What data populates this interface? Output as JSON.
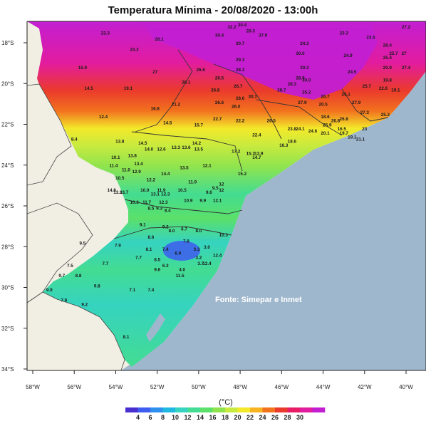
{
  "title": "Temperatura Mínima - 20/08/2020 - 13:00h",
  "source_note": "Fonte: Simepar e Inmet",
  "colorbar": {
    "unit": "(°C)",
    "ticks": [
      "4",
      "6",
      "8",
      "10",
      "12",
      "14",
      "16",
      "18",
      "20",
      "22",
      "24",
      "26",
      "28",
      "30"
    ],
    "colors": [
      "#4a2fd0",
      "#3e5cf0",
      "#2f8fee",
      "#20b8e0",
      "#36d3c0",
      "#43dc92",
      "#5be06a",
      "#8fe44e",
      "#c8ea3e",
      "#f3e92a",
      "#f8b321",
      "#f2731e",
      "#ea3a2c",
      "#e81d66",
      "#e21c9f",
      "#c21fd2"
    ]
  },
  "axes": {
    "lon_labels": [
      "58°W",
      "56°W",
      "54°W",
      "52°W",
      "50°W",
      "48°W",
      "46°W",
      "44°W",
      "42°W",
      "40°W"
    ],
    "lat_labels": [
      "18°S",
      "20°S",
      "22°S",
      "24°S",
      "26°S",
      "28°S",
      "30°S",
      "32°S",
      "34°S"
    ]
  },
  "station_values": [
    {
      "t": "32.2",
      "lon": -48.4,
      "lat": -17.3
    },
    {
      "t": "30.4",
      "lon": -47.9,
      "lat": -17.2
    },
    {
      "t": "30.4",
      "lon": -49.0,
      "lat": -17.7
    },
    {
      "t": "20.3",
      "lon": -47.5,
      "lat": -17.5
    },
    {
      "t": "30.7",
      "lon": -48.0,
      "lat": -18.1
    },
    {
      "t": "37.9",
      "lon": -46.9,
      "lat": -17.7
    },
    {
      "t": "22.3",
      "lon": -54.5,
      "lat": -17.6
    },
    {
      "t": "26.1",
      "lon": -51.9,
      "lat": -17.9
    },
    {
      "t": "23.2",
      "lon": -53.1,
      "lat": -18.4
    },
    {
      "t": "23.3",
      "lon": -43.0,
      "lat": -17.6
    },
    {
      "t": "23.5",
      "lon": -41.7,
      "lat": -17.8
    },
    {
      "t": "27.2",
      "lon": -40.0,
      "lat": -17.3
    },
    {
      "t": "24.3",
      "lon": -44.9,
      "lat": -18.1
    },
    {
      "t": "28.4",
      "lon": -40.9,
      "lat": -18.2
    },
    {
      "t": "25.7",
      "lon": -40.6,
      "lat": -18.6
    },
    {
      "t": "27",
      "lon": -40.1,
      "lat": -18.6
    },
    {
      "t": "30.0",
      "lon": -45.1,
      "lat": -18.6
    },
    {
      "t": "24.9",
      "lon": -42.8,
      "lat": -18.7
    },
    {
      "t": "25.4",
      "lon": -40.9,
      "lat": -18.8
    },
    {
      "t": "29.3",
      "lon": -48.0,
      "lat": -18.9
    },
    {
      "t": "20.9",
      "lon": -40.9,
      "lat": -19.3
    },
    {
      "t": "27.4",
      "lon": -40.0,
      "lat": -19.3
    },
    {
      "t": "15.9",
      "lon": -55.6,
      "lat": -19.3
    },
    {
      "t": "26.6",
      "lon": -49.9,
      "lat": -19.4
    },
    {
      "t": "28.3",
      "lon": -48.0,
      "lat": -19.4
    },
    {
      "t": "30.3",
      "lon": -44.9,
      "lat": -19.3
    },
    {
      "t": "24.5",
      "lon": -42.6,
      "lat": -19.5
    },
    {
      "t": "27",
      "lon": -52.1,
      "lat": -19.5
    },
    {
      "t": "26.5",
      "lon": -49.0,
      "lat": -19.8
    },
    {
      "t": "28.9",
      "lon": -45.1,
      "lat": -19.8
    },
    {
      "t": "30.0",
      "lon": -44.8,
      "lat": -19.9
    },
    {
      "t": "26.1",
      "lon": -50.6,
      "lat": -20.0
    },
    {
      "t": "28.3",
      "lon": -45.5,
      "lat": -20.1
    },
    {
      "t": "26.7",
      "lon": -48.1,
      "lat": -20.2
    },
    {
      "t": "25.7",
      "lon": -41.9,
      "lat": -20.2
    },
    {
      "t": "19.8",
      "lon": -40.9,
      "lat": -19.9
    },
    {
      "t": "19.1",
      "lon": -53.4,
      "lat": -20.3
    },
    {
      "t": "14.5",
      "lon": -55.3,
      "lat": -20.3
    },
    {
      "t": "26.8",
      "lon": -49.2,
      "lat": -20.4
    },
    {
      "t": "28.7",
      "lon": -46.0,
      "lat": -20.4
    },
    {
      "t": "25.2",
      "lon": -44.8,
      "lat": -20.5
    },
    {
      "t": "22.6",
      "lon": -41.1,
      "lat": -20.3
    },
    {
      "t": "19.1",
      "lon": -40.5,
      "lat": -20.4
    },
    {
      "t": "30.1",
      "lon": -47.4,
      "lat": -20.7
    },
    {
      "t": "28.6",
      "lon": -48.0,
      "lat": -20.8
    },
    {
      "t": "26.7",
      "lon": -43.9,
      "lat": -20.7
    },
    {
      "t": "25.1",
      "lon": -42.9,
      "lat": -20.6
    },
    {
      "t": "26.6",
      "lon": -49.0,
      "lat": -21.0
    },
    {
      "t": "27.9",
      "lon": -45.0,
      "lat": -21.0
    },
    {
      "t": "20.5",
      "lon": -44.0,
      "lat": -21.1
    },
    {
      "t": "27.9",
      "lon": -42.4,
      "lat": -21.0
    },
    {
      "t": "16.8",
      "lon": -52.1,
      "lat": -21.3
    },
    {
      "t": "21.2",
      "lon": -51.1,
      "lat": -21.1
    },
    {
      "t": "26.0",
      "lon": -48.2,
      "lat": -21.2
    },
    {
      "t": "27.3",
      "lon": -42.0,
      "lat": -21.5
    },
    {
      "t": "25.3",
      "lon": -41.0,
      "lat": -21.6
    },
    {
      "t": "12.4",
      "lon": -54.6,
      "lat": -21.7
    },
    {
      "t": "18.6",
      "lon": -43.9,
      "lat": -21.7
    },
    {
      "t": "26.8",
      "lon": -43.0,
      "lat": -21.8
    },
    {
      "t": "22.7",
      "lon": -49.1,
      "lat": -21.8
    },
    {
      "t": "22.2",
      "lon": -48.0,
      "lat": -21.9
    },
    {
      "t": "26.5",
      "lon": -46.5,
      "lat": -21.9
    },
    {
      "t": "26.8",
      "lon": -43.4,
      "lat": -21.9
    },
    {
      "t": "14.5",
      "lon": -51.5,
      "lat": -22.0
    },
    {
      "t": "15.7",
      "lon": -50.0,
      "lat": -22.1
    },
    {
      "t": "25.9",
      "lon": -43.8,
      "lat": -22.1
    },
    {
      "t": "23",
      "lon": -42.0,
      "lat": -22.3
    },
    {
      "t": "23.8",
      "lon": -45.5,
      "lat": -22.3
    },
    {
      "t": "24.1",
      "lon": -45.1,
      "lat": -22.3
    },
    {
      "t": "24.6",
      "lon": -44.5,
      "lat": -22.4
    },
    {
      "t": "16.5",
      "lon": -43.1,
      "lat": -22.3
    },
    {
      "t": "20.1",
      "lon": -43.9,
      "lat": -22.5
    },
    {
      "t": "19.7",
      "lon": -43.0,
      "lat": -22.5
    },
    {
      "t": "22.4",
      "lon": -47.2,
      "lat": -22.6
    },
    {
      "t": "19.1",
      "lon": -42.6,
      "lat": -22.7
    },
    {
      "t": "21.1",
      "lon": -42.2,
      "lat": -22.8
    },
    {
      "t": "8.4",
      "lon": -56.0,
      "lat": -22.8
    },
    {
      "t": "13.8",
      "lon": -53.8,
      "lat": -22.9
    },
    {
      "t": "14.5",
      "lon": -52.7,
      "lat": -23.0
    },
    {
      "t": "18.6",
      "lon": -45.5,
      "lat": -22.9
    },
    {
      "t": "16.3",
      "lon": -45.9,
      "lat": -23.1
    },
    {
      "t": "14.2",
      "lon": -50.1,
      "lat": -23.0
    },
    {
      "t": "14.0",
      "lon": -52.4,
      "lat": -23.3
    },
    {
      "t": "12.6",
      "lon": -51.8,
      "lat": -23.3
    },
    {
      "t": "13.3",
      "lon": -51.1,
      "lat": -23.2
    },
    {
      "t": "13.6",
      "lon": -50.6,
      "lat": -23.2
    },
    {
      "t": "13.5",
      "lon": -50.0,
      "lat": -23.3
    },
    {
      "t": "10.1",
      "lon": -54.0,
      "lat": -23.7
    },
    {
      "t": "13.8",
      "lon": -53.2,
      "lat": -23.6
    },
    {
      "t": "17.2",
      "lon": -48.2,
      "lat": -23.4
    },
    {
      "t": "15.3",
      "lon": -47.5,
      "lat": -23.5
    },
    {
      "t": "13.9",
      "lon": -47.1,
      "lat": -23.5
    },
    {
      "t": "14.7",
      "lon": -47.2,
      "lat": -23.7
    },
    {
      "t": "11.4",
      "lon": -54.1,
      "lat": -24.1
    },
    {
      "t": "13.4",
      "lon": -52.9,
      "lat": -24.0
    },
    {
      "t": "12.1",
      "lon": -49.6,
      "lat": -24.1
    },
    {
      "t": "11.0",
      "lon": -53.5,
      "lat": -24.3
    },
    {
      "t": "12.9",
      "lon": -53.0,
      "lat": -24.4
    },
    {
      "t": "14.4",
      "lon": -51.6,
      "lat": -24.5
    },
    {
      "t": "13.5",
      "lon": -50.7,
      "lat": -24.2
    },
    {
      "t": "10.5",
      "lon": -53.8,
      "lat": -24.7
    },
    {
      "t": "12.2",
      "lon": -52.3,
      "lat": -24.8
    },
    {
      "t": "15.2",
      "lon": -47.9,
      "lat": -24.5
    },
    {
      "t": "11.9",
      "lon": -50.3,
      "lat": -24.9
    },
    {
      "t": "14.8",
      "lon": -54.2,
      "lat": -25.3
    },
    {
      "t": "13.3",
      "lon": -53.9,
      "lat": -25.4
    },
    {
      "t": "13.7",
      "lon": -53.6,
      "lat": -25.4
    },
    {
      "t": "10.0",
      "lon": -52.6,
      "lat": -25.3
    },
    {
      "t": "11.9",
      "lon": -51.8,
      "lat": -25.3
    },
    {
      "t": "10.5",
      "lon": -50.8,
      "lat": -25.3
    },
    {
      "t": "13.1",
      "lon": -52.1,
      "lat": -25.5
    },
    {
      "t": "12.3",
      "lon": -51.6,
      "lat": -25.5
    },
    {
      "t": "9.6",
      "lon": -49.5,
      "lat": -25.4
    },
    {
      "t": "12",
      "lon": -48.9,
      "lat": -25.3
    },
    {
      "t": "9.5",
      "lon": -49.2,
      "lat": -25.2
    },
    {
      "t": "12",
      "lon": -48.9,
      "lat": -25.0
    },
    {
      "t": "10.9",
      "lon": -50.5,
      "lat": -25.8
    },
    {
      "t": "9.9",
      "lon": -49.8,
      "lat": -25.8
    },
    {
      "t": "12.1",
      "lon": -49.1,
      "lat": -25.8
    },
    {
      "t": "10.3",
      "lon": -53.1,
      "lat": -25.9
    },
    {
      "t": "11.7",
      "lon": -52.5,
      "lat": -25.9
    },
    {
      "t": "12.3",
      "lon": -51.7,
      "lat": -25.9
    },
    {
      "t": "8.5",
      "lon": -52.3,
      "lat": -26.2
    },
    {
      "t": "9.3",
      "lon": -51.9,
      "lat": -26.2
    },
    {
      "t": "8.4",
      "lon": -51.5,
      "lat": -26.3
    },
    {
      "t": "9.1",
      "lon": -52.7,
      "lat": -27.0
    },
    {
      "t": "9.2",
      "lon": -51.6,
      "lat": -27.1
    },
    {
      "t": "6.7",
      "lon": -50.7,
      "lat": -27.2
    },
    {
      "t": "8.0",
      "lon": -51.3,
      "lat": -27.3
    },
    {
      "t": "8.0",
      "lon": -50.0,
      "lat": -27.3
    },
    {
      "t": "8.6",
      "lon": -52.3,
      "lat": -27.6
    },
    {
      "t": "10.3",
      "lon": -48.8,
      "lat": -27.5
    },
    {
      "t": "9.5",
      "lon": -55.6,
      "lat": -27.9
    },
    {
      "t": "7.9",
      "lon": -53.9,
      "lat": -28.0
    },
    {
      "t": "7.8",
      "lon": -50.6,
      "lat": -27.8
    },
    {
      "t": "8.1",
      "lon": -52.4,
      "lat": -28.2
    },
    {
      "t": "7.4",
      "lon": -51.6,
      "lat": -28.2
    },
    {
      "t": "3.3",
      "lon": -50.1,
      "lat": -28.2
    },
    {
      "t": "3.0",
      "lon": -49.6,
      "lat": -28.1
    },
    {
      "t": "6.9",
      "lon": -51.0,
      "lat": -28.4
    },
    {
      "t": "12.4",
      "lon": -49.1,
      "lat": -28.5
    },
    {
      "t": "7.7",
      "lon": -52.9,
      "lat": -28.6
    },
    {
      "t": "8.5",
      "lon": -52.0,
      "lat": -28.7
    },
    {
      "t": "3.2",
      "lon": -50.0,
      "lat": -28.6
    },
    {
      "t": "3.7",
      "lon": -49.9,
      "lat": -28.9
    },
    {
      "t": "12.4",
      "lon": -49.6,
      "lat": -28.9
    },
    {
      "t": "7.5",
      "lon": -56.2,
      "lat": -29.0
    },
    {
      "t": "7.7",
      "lon": -54.5,
      "lat": -28.9
    },
    {
      "t": "6.3",
      "lon": -51.6,
      "lat": -29.0
    },
    {
      "t": "4.0",
      "lon": -50.8,
      "lat": -29.2
    },
    {
      "t": "9.6",
      "lon": -52.0,
      "lat": -29.2
    },
    {
      "t": "9.7",
      "lon": -56.6,
      "lat": -29.5
    },
    {
      "t": "8.8",
      "lon": -55.8,
      "lat": -29.5
    },
    {
      "t": "11.5",
      "lon": -50.9,
      "lat": -29.5
    },
    {
      "t": "9.8",
      "lon": -54.9,
      "lat": -30.0
    },
    {
      "t": "7.1",
      "lon": -53.2,
      "lat": -30.2
    },
    {
      "t": "7.4",
      "lon": -52.3,
      "lat": -30.2
    },
    {
      "t": "9.9",
      "lon": -57.2,
      "lat": -30.2
    },
    {
      "t": "7.9",
      "lon": -56.5,
      "lat": -30.7
    },
    {
      "t": "9.2",
      "lon": -55.5,
      "lat": -30.9
    },
    {
      "t": "8.1",
      "lon": -53.5,
      "lat": -32.5
    }
  ]
}
